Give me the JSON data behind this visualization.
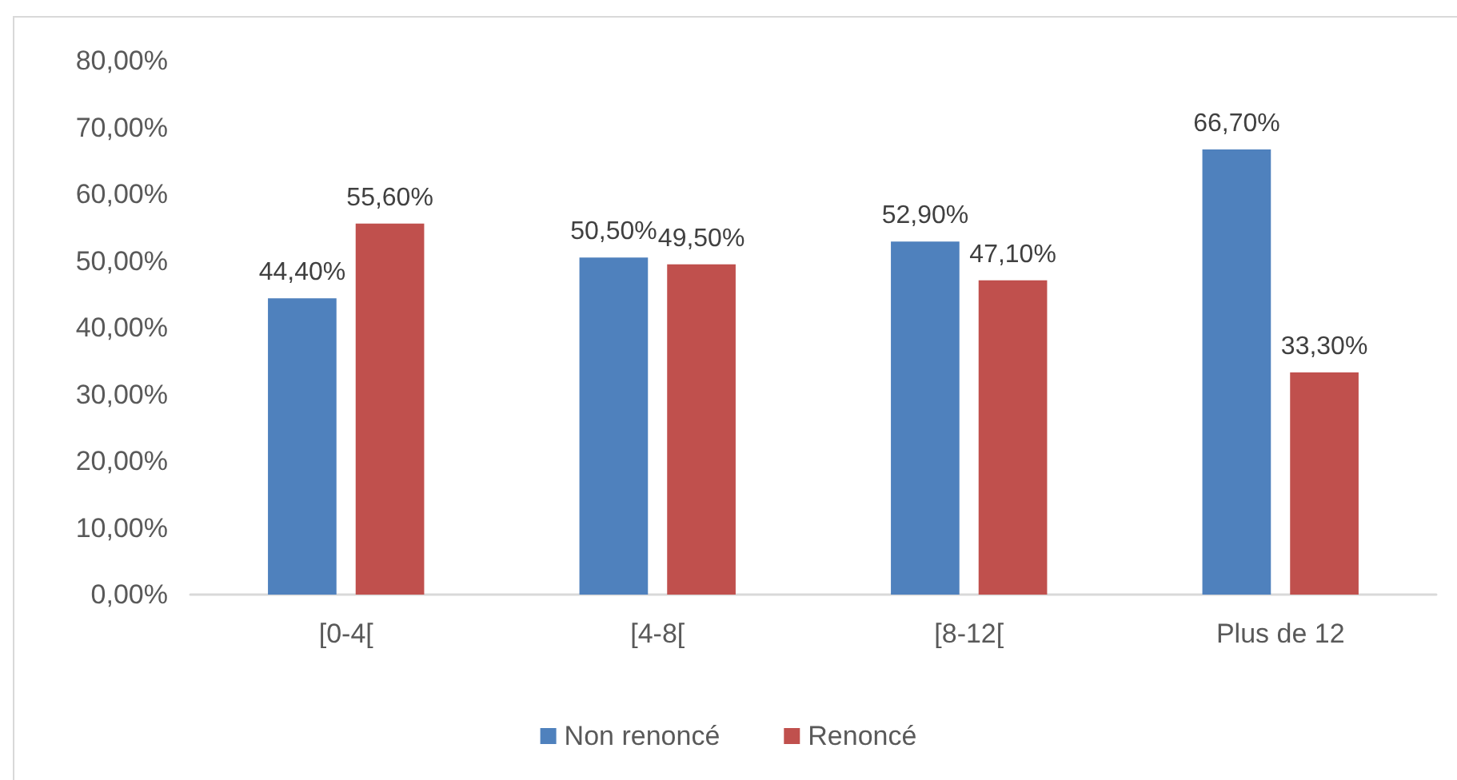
{
  "chart_data": {
    "type": "bar",
    "categories": [
      "[0-4[",
      "[4-8[",
      "[8-12[",
      "Plus de 12"
    ],
    "series": [
      {
        "name": "Non renoncé",
        "color": "#4f81bd",
        "values": [
          44.4,
          50.5,
          52.9,
          66.7
        ],
        "value_labels": [
          "44,40%",
          "50,50%",
          "52,90%",
          "66,70%"
        ]
      },
      {
        "name": "Renoncé",
        "color": "#c0504d",
        "values": [
          55.6,
          49.5,
          47.1,
          33.3
        ],
        "value_labels": [
          "55,60%",
          "49,50%",
          "47,10%",
          "33,30%"
        ]
      }
    ],
    "ylim": [
      0,
      80
    ],
    "yticks": [
      {
        "value": 0,
        "label": "0,00%"
      },
      {
        "value": 10,
        "label": "10,00%"
      },
      {
        "value": 20,
        "label": "20,00%"
      },
      {
        "value": 30,
        "label": "30,00%"
      },
      {
        "value": 40,
        "label": "40,00%"
      },
      {
        "value": 50,
        "label": "50,00%"
      },
      {
        "value": 60,
        "label": "60,00%"
      },
      {
        "value": 70,
        "label": "70,00%"
      },
      {
        "value": 80,
        "label": "80,00%"
      }
    ],
    "grid": false,
    "legend": "bottom"
  }
}
